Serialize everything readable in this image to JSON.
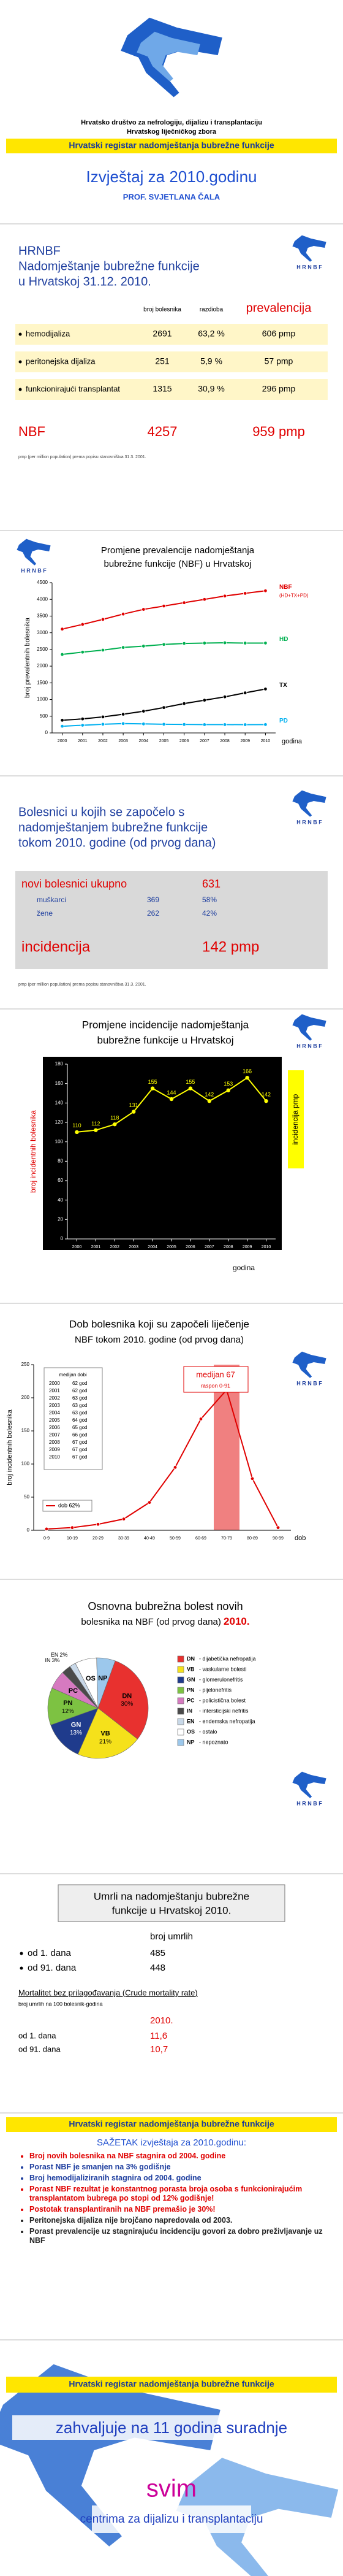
{
  "logo": "H R N B F",
  "header": {
    "org": [
      "Hrvatsko društvo za nefrologiju, dijalizu i transplantaciju",
      "Hrvatskog liječničkog zbora"
    ],
    "banner": "Hrvatski registar nadomještanja bubrežne funkcije",
    "title": "Izvještaj za 2010.godinu",
    "author": "PROF. SVJETLANA ČALA"
  },
  "prevalence_table": {
    "title": [
      "HRNBF",
      "Nadomještanje bubrežne funkcije",
      "u Hrvatskoj 31.12. 2010."
    ],
    "columns": [
      "broj bolesnika",
      "razdioba",
      "prevalencija"
    ],
    "rows": [
      [
        "hemodijaliza",
        "2691",
        "63,2 %",
        "606 pmp"
      ],
      [
        "peritonejska dijaliza",
        "251",
        "5,9 %",
        "57 pmp"
      ],
      [
        "funkcionirajući transplantat",
        "1315",
        "30,9 %",
        "296 pmp"
      ]
    ],
    "total": [
      "NBF",
      "4257",
      "959 pmp"
    ],
    "note": "pmp (per million population) prema popisu stanovništva 31.3. 2001."
  },
  "new_patients": {
    "title": [
      "Bolesnici u kojih se započelo s",
      "nadomještanjem bubrežne funkcije",
      "tokom 2010. godine (od prvog dana)"
    ],
    "total": [
      "novi bolesnici ukupno",
      "631"
    ],
    "rows": [
      [
        "muškarci",
        "369",
        "58%"
      ],
      [
        "žene",
        "262",
        "42%"
      ]
    ],
    "incidence": [
      "incidencija",
      "142 pmp"
    ],
    "note": "pmp (per million population) prema popisu stanovništva 31.3. 2001."
  },
  "chart_data": [
    {
      "type": "line",
      "title": [
        "Promjene prevalencije nadomještanja",
        "bubrežne funkcije (NBF) u Hrvatskoj"
      ],
      "x": [
        2000,
        2001,
        2002,
        2003,
        2004,
        2005,
        2006,
        2007,
        2008,
        2009,
        2010
      ],
      "xlim": [
        1999.5,
        2010.5
      ],
      "xticks": [
        2000,
        2001,
        2002,
        2003,
        2004,
        2005,
        2006,
        2007,
        2008,
        2009,
        2010
      ],
      "ylim": [
        0,
        4500
      ],
      "yticks": [
        0,
        500,
        1000,
        1500,
        2000,
        2500,
        3000,
        3500,
        4000,
        4500
      ],
      "ylabel": "broj prevalentnih bolesnika",
      "xlabel": "godina",
      "series_labels": "end",
      "annotation": "(HD+TX+PD)",
      "series": [
        {
          "name": "NBF",
          "color": "#e00000",
          "values": [
            3110,
            3250,
            3400,
            3560,
            3700,
            3800,
            3900,
            4000,
            4100,
            4180,
            4257
          ]
        },
        {
          "name": "HD",
          "color": "#00b050",
          "values": [
            2350,
            2420,
            2480,
            2560,
            2600,
            2650,
            2680,
            2690,
            2700,
            2690,
            2691
          ]
        },
        {
          "name": "TX",
          "color": "#000000",
          "values": [
            380,
            420,
            480,
            560,
            650,
            760,
            880,
            980,
            1080,
            1200,
            1315
          ]
        },
        {
          "name": "PD",
          "color": "#00b0f0",
          "values": [
            200,
            230,
            260,
            280,
            270,
            260,
            255,
            250,
            250,
            248,
            251
          ]
        }
      ]
    },
    {
      "type": "line",
      "title": [
        "Promjene incidencije nadomještanja",
        "bubrežne funkcije u Hrvatskoj"
      ],
      "x": [
        2000,
        2001,
        2002,
        2003,
        2004,
        2005,
        2006,
        2007,
        2008,
        2009,
        2010
      ],
      "xlim": [
        1999.5,
        2010.5
      ],
      "xticks": [
        2000,
        2001,
        2002,
        2003,
        2004,
        2005,
        2006,
        2007,
        2008,
        2009,
        2010
      ],
      "ylim": [
        0,
        180
      ],
      "yticks": [
        0,
        20,
        40,
        60,
        80,
        100,
        120,
        140,
        160,
        180
      ],
      "ylabel": "broj incidentnih bolesnika",
      "y2label": "incidencija pmp",
      "xlabel": "godina",
      "background": "#000000",
      "tick_color": "#ffffff",
      "data_labels": true,
      "color": "#ffff00",
      "values": [
        110,
        112,
        118,
        131,
        155,
        144,
        155,
        142,
        153,
        166,
        142
      ]
    },
    {
      "type": "line",
      "title": [
        "Dob bolesnika koji su započeli liječenje",
        "NBF tokom 2010. godine (od prvog dana)"
      ],
      "categories": [
        "0-9",
        "10-19",
        "20-29",
        "30-39",
        "40-49",
        "50-59",
        "60-69",
        "70-79",
        "80-89",
        "90-99"
      ],
      "ylim": [
        0,
        250
      ],
      "yticks": [
        0,
        50,
        100,
        150,
        200,
        250
      ],
      "ylabel": "broj incidentnih bolesnika",
      "xlabel": "dob",
      "legend": "lower-left",
      "highlight_index": 7,
      "series": [
        {
          "name": "dob 62%",
          "color": "#e00000",
          "values": [
            2,
            4,
            9,
            17,
            42,
            95,
            168,
            212,
            78,
            4
          ]
        }
      ],
      "median_table": {
        "title": "medijan dobi",
        "rows": [
          [
            "2000",
            "62 god"
          ],
          [
            "2001",
            "62 god"
          ],
          [
            "2002",
            "63 god"
          ],
          [
            "2003",
            "63 god"
          ],
          [
            "2004",
            "63 god"
          ],
          [
            "2005",
            "64 god"
          ],
          [
            "2006",
            "65 god"
          ],
          [
            "2007",
            "66 god"
          ],
          [
            "2008",
            "67 god"
          ],
          [
            "2009",
            "67 god"
          ],
          [
            "2010",
            "67 god"
          ]
        ]
      },
      "annotation": [
        "medijan 67",
        "raspon 0-91"
      ]
    },
    {
      "type": "pie",
      "title": [
        "Osnovna bubrežna bolest novih",
        "bolesnika na NBF (od prvog dana)"
      ],
      "title_highlight": "2010.",
      "categories": [
        "DN",
        "VB",
        "GN",
        "PN",
        "PC",
        "IN",
        "EN",
        "OS",
        "NP"
      ],
      "values": [
        30,
        21,
        13,
        12,
        6,
        3,
        2,
        7,
        6
      ],
      "value_labels": [
        "30%",
        "21%",
        "13%",
        "12%",
        null,
        "3%",
        "2%",
        null,
        null
      ],
      "colors": [
        "#e8312f",
        "#f5e11b",
        "#1f3b8c",
        "#7dc242",
        "#d67ac0",
        "#4a4a4a",
        "#c8d8e8",
        "#ffffff",
        "#9cc8ec"
      ],
      "descriptions": [
        "- dijabetička nefropatija",
        "- vaskularne bolesti",
        "- glomerulonefritis",
        "- pijelonefritis",
        "- policistična bolest",
        "- intersticijski nefritis",
        "- endemska nefropatija",
        "- ostalo",
        "- nepoznato"
      ]
    }
  ],
  "mortality": {
    "title": [
      "Umrli na nadomještanju bubrežne",
      "funkcije u Hrvatskoj 2010."
    ],
    "count_header": "broj umrlih",
    "counts": [
      [
        "od 1. dana",
        "485"
      ],
      [
        "od 91. dana",
        "448"
      ]
    ],
    "rate_title": "Mortalitet bez prilagođavanja (Crude mortality rate)",
    "rate_unit": "broj umrlih na 100 bolesnik-godina",
    "rate_year": "2010.",
    "rates": [
      [
        "od 1. dana",
        "11,6"
      ],
      [
        "od 91. dana",
        "10,7"
      ]
    ]
  },
  "summary": {
    "banner": "Hrvatski registar nadomještanja bubrežne funkcije",
    "title": "SAŽETAK izvještaja za 2010.godinu:",
    "bullets": [
      {
        "text": "Broj novih bolesnika na NBF stagnira od 2004. godine",
        "color": "#e00000"
      },
      {
        "text": "Porast NBF je smanjen na 3% godišnje",
        "color": "#1f3f9f"
      },
      {
        "text": "Broj hemodijaliziranih stagnira od 2004. godine",
        "color": "#1f3f9f"
      },
      {
        "text": "Porast NBF rezultat je konstantnog porasta broja osoba s funkcionirajućim transplantatom bubrega po stopi od 12% godišnje!",
        "color": "#e00000"
      },
      {
        "text": "Postotak transplantiranih na NBF premašio je 30%!",
        "color": "#e00000"
      },
      {
        "text": "Peritonejska dijaliza nije brojčano napredovala od 2003.",
        "color": "#222222"
      },
      {
        "text": "Porast prevalencije uz stagnirajuću incidenciju govori za dobro preživljavanje uz NBF",
        "color": "#222222"
      }
    ]
  },
  "closing": {
    "banner": "Hrvatski registar nadomještanja bubrežne funkcije",
    "thanks": "zahvaljuje na 11 godina suradnje",
    "to": "svim",
    "centers": "centrima za dijalizu i transplantaciju"
  }
}
